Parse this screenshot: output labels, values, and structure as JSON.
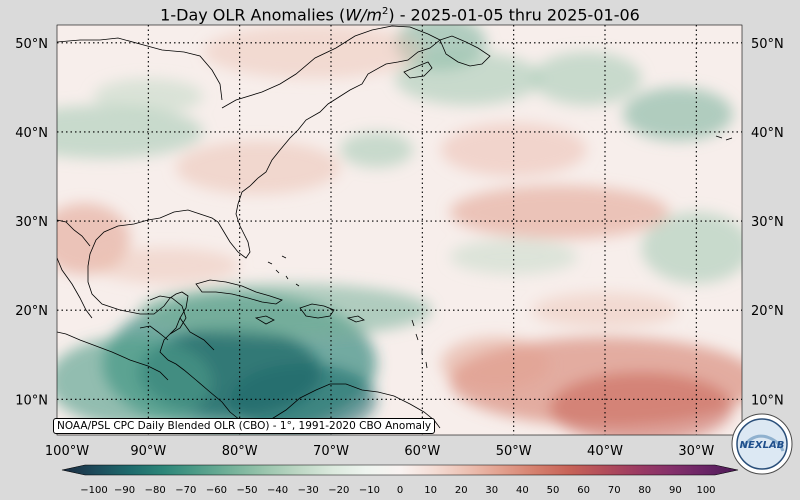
{
  "title": "1-Day OLR Anomalies (W/m²) - 2025-01-05 thru 2025-01-06",
  "title_parts": {
    "prefix": "1-Day OLR Anomalies (",
    "unit_italic": "W/m",
    "unit_sup": "2",
    "suffix": ") - 2025-01-05 thru 2025-01-06"
  },
  "credit": "NOAA/PSL CPC Daily Blended OLR (CBO) - 1°, 1991-2020 CBO Anomaly",
  "logo_text": "NEXLAB",
  "map": {
    "lon_range": [
      -100,
      -25
    ],
    "lat_range": [
      6,
      52
    ],
    "lat_labels": [
      "50°N",
      "40°N",
      "30°N",
      "20°N",
      "10°N"
    ],
    "lat_values": [
      50,
      40,
      30,
      20,
      10
    ],
    "lon_labels": [
      "100°W",
      "90°W",
      "80°W",
      "70°W",
      "60°W",
      "50°W",
      "40°W",
      "30°W"
    ],
    "lon_values": [
      -100,
      -90,
      -80,
      -70,
      -60,
      -50,
      -40,
      -30
    ]
  },
  "colorbar": {
    "ticks": [
      "−100",
      "−90",
      "−80",
      "−70",
      "−60",
      "−50",
      "−40",
      "−30",
      "−20",
      "−10",
      "0",
      "10",
      "20",
      "30",
      "40",
      "50",
      "60",
      "70",
      "80",
      "90",
      "100"
    ],
    "stops": [
      "#1a2a3f",
      "#1d4b5b",
      "#1e6a6c",
      "#2d8679",
      "#4f9c88",
      "#74b199",
      "#9ac5ad",
      "#bdd7c4",
      "#dbe9dd",
      "#eef4ef",
      "#f9f3f1",
      "#f4ddd5",
      "#ecc0b2",
      "#e2a08e",
      "#d5806e",
      "#c76358",
      "#b34e5a",
      "#9c3b62",
      "#85306a",
      "#6a2566",
      "#4a1a55"
    ]
  },
  "anomaly_blobs": [
    {
      "lon": -81,
      "lat": 13,
      "rx": 10,
      "ry": 5,
      "color": "#1d4b5b",
      "opacity": 0.85
    },
    {
      "lon": -80,
      "lat": 14,
      "rx": 15,
      "ry": 8,
      "color": "#2d8679",
      "opacity": 0.65
    },
    {
      "lon": -92,
      "lat": 12,
      "rx": 9,
      "ry": 5,
      "color": "#4f9c88",
      "opacity": 0.6
    },
    {
      "lon": -73,
      "lat": 10,
      "rx": 8,
      "ry": 4,
      "color": "#1e6a6c",
      "opacity": 0.6
    },
    {
      "lon": -75,
      "lat": 20,
      "rx": 16,
      "ry": 3,
      "color": "#74b199",
      "opacity": 0.55
    },
    {
      "lon": -95,
      "lat": 40,
      "rx": 11,
      "ry": 3,
      "color": "#9ac5ad",
      "opacity": 0.5
    },
    {
      "lon": -90,
      "lat": 44,
      "rx": 6,
      "ry": 2,
      "color": "#bdd7c4",
      "opacity": 0.5
    },
    {
      "lon": -58,
      "lat": 50,
      "rx": 5,
      "ry": 3,
      "color": "#74b199",
      "opacity": 0.55
    },
    {
      "lon": -55,
      "lat": 46,
      "rx": 8,
      "ry": 3,
      "color": "#9ac5ad",
      "opacity": 0.5
    },
    {
      "lon": -32,
      "lat": 42,
      "rx": 6,
      "ry": 3,
      "color": "#74b199",
      "opacity": 0.55
    },
    {
      "lon": -42,
      "lat": 46,
      "rx": 6,
      "ry": 3,
      "color": "#9ac5ad",
      "opacity": 0.5
    },
    {
      "lon": -50,
      "lat": 26,
      "rx": 7,
      "ry": 2,
      "color": "#bdd7c4",
      "opacity": 0.45
    },
    {
      "lon": -30,
      "lat": 27,
      "rx": 6,
      "ry": 4,
      "color": "#9ac5ad",
      "opacity": 0.5
    },
    {
      "lon": -65,
      "lat": 38,
      "rx": 4,
      "ry": 2,
      "color": "#9ac5ad",
      "opacity": 0.5
    },
    {
      "lon": -50,
      "lat": 38,
      "rx": 8,
      "ry": 3,
      "color": "#ecc0b2",
      "opacity": 0.55
    },
    {
      "lon": -45,
      "lat": 31,
      "rx": 12,
      "ry": 3,
      "color": "#e2a08e",
      "opacity": 0.55
    },
    {
      "lon": -78,
      "lat": 36,
      "rx": 9,
      "ry": 3,
      "color": "#ecc0b2",
      "opacity": 0.5
    },
    {
      "lon": -72,
      "lat": 49,
      "rx": 12,
      "ry": 3,
      "color": "#ecc0b2",
      "opacity": 0.45
    },
    {
      "lon": -97,
      "lat": 28,
      "rx": 5,
      "ry": 4,
      "color": "#e2a08e",
      "opacity": 0.55
    },
    {
      "lon": -40,
      "lat": 20,
      "rx": 8,
      "ry": 2,
      "color": "#ecc0b2",
      "opacity": 0.45
    },
    {
      "lon": -40,
      "lat": 12,
      "rx": 17,
      "ry": 5,
      "color": "#d5806e",
      "opacity": 0.6
    },
    {
      "lon": -36,
      "lat": 9,
      "rx": 10,
      "ry": 4,
      "color": "#c76358",
      "opacity": 0.55
    },
    {
      "lon": -52,
      "lat": 14,
      "rx": 6,
      "ry": 3,
      "color": "#e2a08e",
      "opacity": 0.5
    },
    {
      "lon": -88,
      "lat": 25,
      "rx": 8,
      "ry": 2,
      "color": "#ecc0b2",
      "opacity": 0.45
    }
  ]
}
